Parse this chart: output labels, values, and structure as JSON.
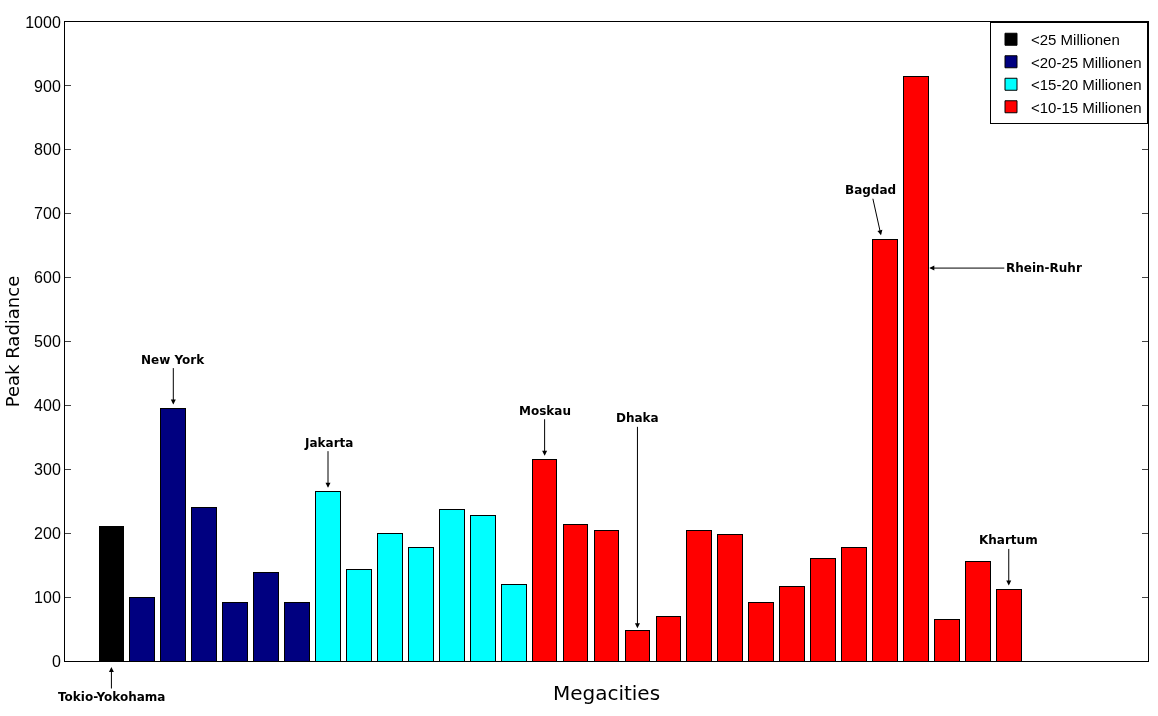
{
  "chart_data": {
    "type": "bar",
    "xlabel": "Megacities",
    "ylabel": "Peak Radiance",
    "categories": [
      null,
      null,
      null,
      null,
      null,
      null,
      null,
      null,
      null,
      null,
      null,
      null,
      null,
      null,
      null,
      null,
      null,
      null,
      null,
      null,
      null,
      null,
      null,
      null,
      null,
      null,
      null,
      null,
      null,
      null
    ],
    "series": [
      {
        "name": "<25 Millionen",
        "color": "#000000",
        "values": [
          210,
          null,
          null,
          null,
          null,
          null,
          null,
          null,
          null,
          null,
          null,
          null,
          null,
          null,
          null,
          null,
          null,
          null,
          null,
          null,
          null,
          null,
          null,
          null,
          null,
          null,
          null,
          null,
          null,
          null
        ]
      },
      {
        "name": "<20-25 Millionen",
        "color": "#000080",
        "values": [
          null,
          100,
          395,
          240,
          92,
          138,
          92,
          null,
          null,
          null,
          null,
          null,
          null,
          null,
          null,
          null,
          null,
          null,
          null,
          null,
          null,
          null,
          null,
          null,
          null,
          null,
          null,
          null,
          null,
          null
        ]
      },
      {
        "name": "<15-20 Millionen",
        "color": "#00ffff",
        "values": [
          null,
          null,
          null,
          null,
          null,
          null,
          null,
          265,
          143,
          200,
          177,
          237,
          228,
          120,
          null,
          null,
          null,
          null,
          null,
          null,
          null,
          null,
          null,
          null,
          null,
          null,
          null,
          null,
          null,
          null
        ]
      },
      {
        "name": "<10-15 Millionen",
        "color": "#ff0000",
        "values": [
          null,
          null,
          null,
          null,
          null,
          null,
          null,
          null,
          null,
          null,
          null,
          null,
          null,
          null,
          315,
          213,
          205,
          48,
          70,
          205,
          198,
          92,
          117,
          160,
          177,
          660,
          915,
          65,
          155,
          112
        ]
      }
    ],
    "ylim": [
      0,
      1000
    ],
    "yticks": [
      0,
      100,
      200,
      300,
      400,
      500,
      600,
      700,
      800,
      900,
      1000
    ],
    "legend": "top right",
    "grid": false,
    "stacked": true,
    "annotations": [
      "Tokio-Yokohama",
      "New York",
      "Jakarta",
      "Moskau",
      "Dhaka",
      "Bagdad",
      "Rhein-Ruhr",
      "Khartum"
    ]
  }
}
